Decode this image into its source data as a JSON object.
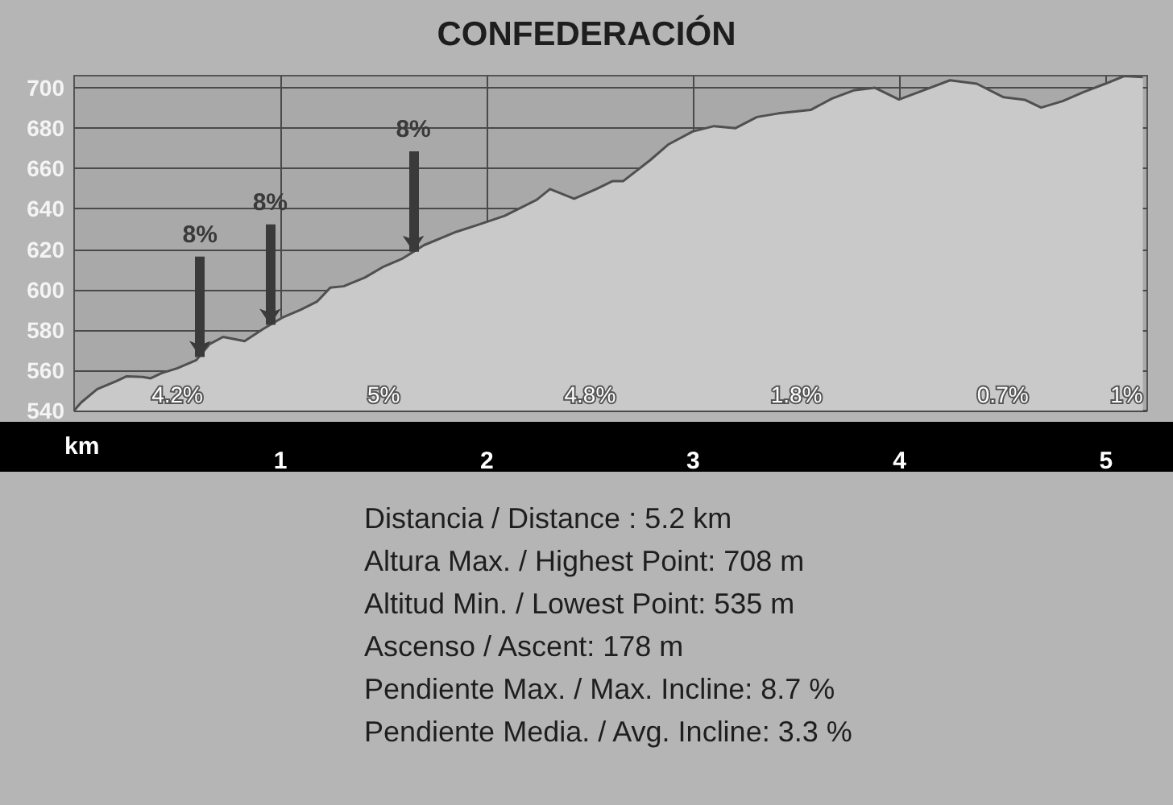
{
  "chart_data": {
    "type": "area",
    "title": "CONFEDERACIÓN",
    "xlabel": "km",
    "x": [
      0,
      0.034,
      0.112,
      0.203,
      0.255,
      0.332,
      0.371,
      0.423,
      0.501,
      0.592,
      0.657,
      0.722,
      0.826,
      0.917,
      1.008,
      1.099,
      1.177,
      1.242,
      1.306,
      1.41,
      1.501,
      1.592,
      1.696,
      1.852,
      1.956,
      2.086,
      2.164,
      2.242,
      2.306,
      2.423,
      2.53,
      2.608,
      2.66,
      2.79,
      2.881,
      2.997,
      3.101,
      3.205,
      3.309,
      3.413,
      3.569,
      3.673,
      3.777,
      3.881,
      3.997,
      4.114,
      4.244,
      4.374,
      4.504,
      4.608,
      4.686,
      4.79,
      4.894,
      4.997,
      5.088,
      5.179
    ],
    "series": [
      {
        "color": "#505050",
        "values": [
          540,
          544,
          550.6,
          554.5,
          557,
          556.7,
          556,
          558.5,
          561,
          565,
          573,
          576.5,
          574.4,
          580.5,
          586,
          590,
          594,
          601,
          601.6,
          606,
          611.4,
          615.4,
          622,
          628.6,
          632,
          636.5,
          640.5,
          644.5,
          649.8,
          645,
          649.8,
          653.7,
          653.7,
          664,
          672,
          678.3,
          681,
          680,
          685.5,
          687.3,
          689,
          694.7,
          698.7,
          700,
          694.2,
          698.7,
          703.7,
          702,
          695.3,
          694,
          690.2,
          693.4,
          698,
          702,
          705.8,
          705.3
        ]
      }
    ],
    "xlim": [
      0,
      5.2
    ],
    "ylim": [
      540,
      706
    ],
    "xticks": [
      1,
      2,
      3,
      4,
      5
    ],
    "yticks": [
      540,
      560,
      580,
      600,
      620,
      640,
      660,
      680,
      700
    ],
    "grid": true,
    "marker": "none",
    "annotations": [
      {
        "text": "8%",
        "x": 0.61,
        "y": 566.5
      },
      {
        "text": "8%",
        "x": 0.95,
        "y": 582.5
      },
      {
        "text": "8%",
        "x": 1.644,
        "y": 618.7
      },
      "4.2%",
      "5%",
      "4.8%",
      "1.8%",
      "0.7%",
      "1%",
      "Distancia / Distance : 5.2 km",
      "Altura Max. / Highest Point: 708 m",
      "Altitud Min. / Lowest Point: 535 m",
      "Ascenso / Ascent: 178 m",
      "Pendiente Max. / Max. Incline: 8.7 %",
      "Pendiente Media. / Avg. Incline: 3.3 %"
    ]
  }
}
